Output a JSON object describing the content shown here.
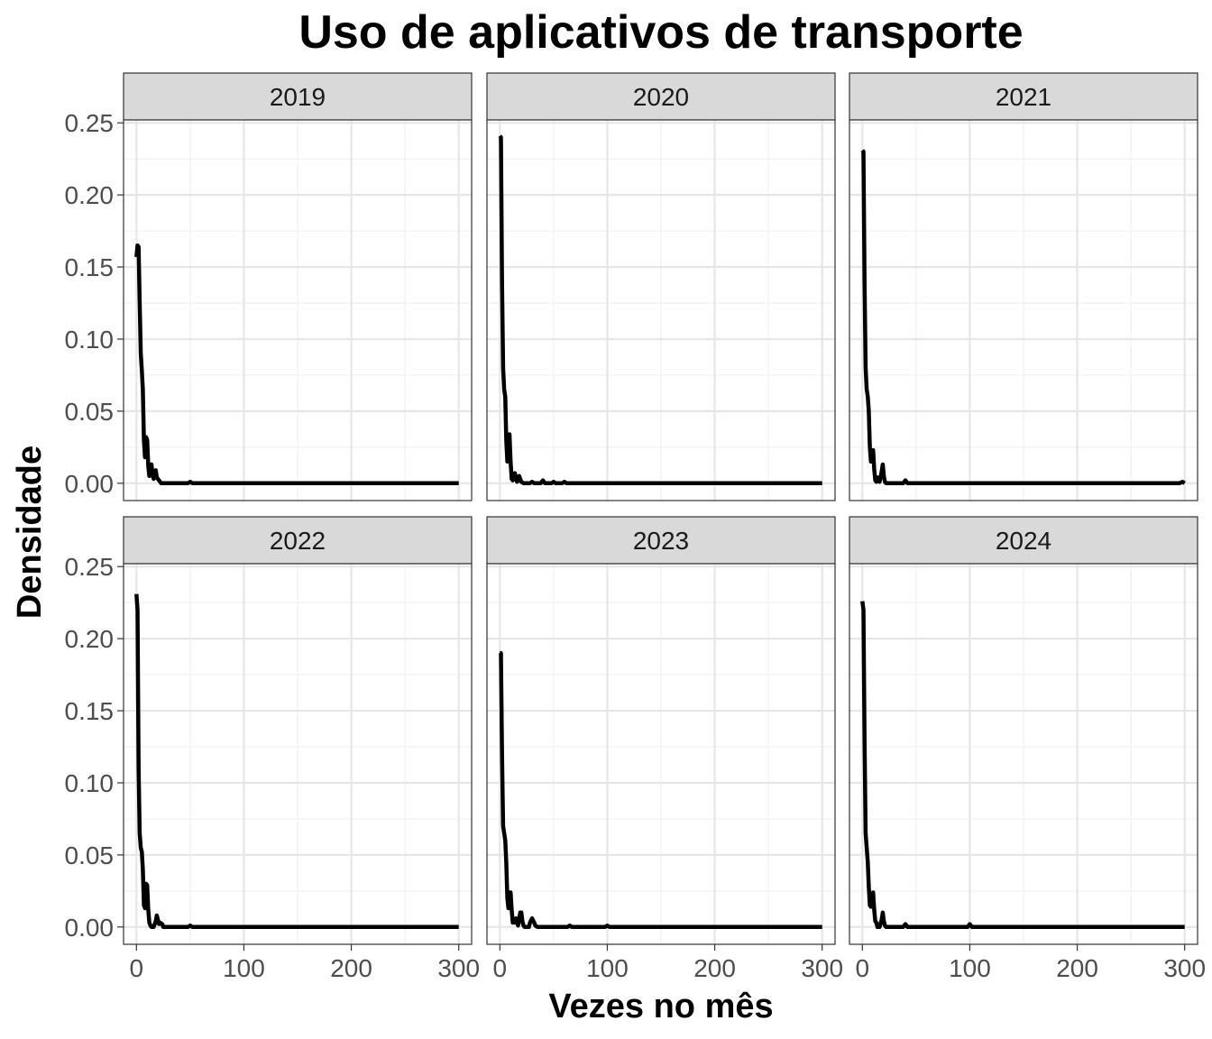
{
  "chart_data": {
    "type": "line",
    "title": "Uso de aplicativos de transporte",
    "xlabel": "Vezes no mês",
    "ylabel": "Densidade",
    "xlim": [
      -12,
      312
    ],
    "ylim": [
      -0.012,
      0.252
    ],
    "x_ticks": [
      0,
      100,
      200,
      300
    ],
    "x_tick_labels": [
      "0",
      "100",
      "200",
      "300"
    ],
    "y_ticks": [
      0,
      0.05,
      0.1,
      0.15,
      0.2,
      0.25
    ],
    "y_tick_labels": [
      "0.00",
      "0.05",
      "0.10",
      "0.15",
      "0.20",
      "0.25"
    ],
    "grid": true,
    "facet_layout": "2 rows x 3 columns",
    "line_color": "#000000",
    "panels": [
      {
        "label": "2019",
        "x": [
          0,
          1,
          2,
          3,
          4,
          5,
          6,
          7,
          8,
          9,
          10,
          11,
          12,
          13,
          14,
          15,
          16,
          17,
          18,
          19,
          20,
          21,
          22,
          23,
          25,
          30,
          40,
          48,
          50,
          52,
          60,
          100,
          200,
          300
        ],
        "y": [
          0.157,
          0.165,
          0.164,
          0.125,
          0.09,
          0.078,
          0.065,
          0.03,
          0.018,
          0.032,
          0.03,
          0.012,
          0.005,
          0.013,
          0.013,
          0.006,
          0.003,
          0.008,
          0.009,
          0.004,
          0.003,
          0.002,
          0.001,
          0.0,
          0.0,
          0.0,
          0.0,
          0.0,
          0.001,
          0.0,
          0.0,
          0.0,
          0.0,
          0.0
        ]
      },
      {
        "label": "2020",
        "x": [
          0,
          1,
          2,
          3,
          4,
          5,
          6,
          7,
          8,
          9,
          10,
          11,
          12,
          13,
          14,
          15,
          16,
          18,
          19,
          20,
          22,
          25,
          28,
          30,
          32,
          38,
          40,
          42,
          48,
          50,
          52,
          58,
          60,
          62,
          80,
          100,
          200,
          300
        ],
        "y": [
          0.241,
          0.24,
          0.14,
          0.08,
          0.065,
          0.06,
          0.03,
          0.015,
          0.033,
          0.034,
          0.015,
          0.003,
          0.002,
          0.006,
          0.007,
          0.003,
          0.001,
          0.005,
          0.003,
          0.001,
          0.0,
          0.0,
          0.0,
          0.001,
          0.0,
          0.0,
          0.002,
          0.0,
          0.0,
          0.001,
          0.0,
          0.0,
          0.001,
          0.0,
          0.0,
          0.0,
          0.0,
          0.0
        ]
      },
      {
        "label": "2021",
        "x": [
          0,
          1,
          2,
          3,
          4,
          5,
          6,
          7,
          8,
          9,
          10,
          11,
          12,
          13,
          14,
          15,
          16,
          18,
          19,
          20,
          21,
          22,
          25,
          30,
          38,
          40,
          42,
          50,
          100,
          200,
          295,
          298,
          300
        ],
        "y": [
          0.231,
          0.23,
          0.14,
          0.08,
          0.065,
          0.06,
          0.05,
          0.025,
          0.015,
          0.022,
          0.023,
          0.01,
          0.002,
          0.001,
          0.004,
          0.003,
          0.001,
          0.008,
          0.013,
          0.005,
          0.001,
          0.0,
          0.0,
          0.0,
          0.0,
          0.002,
          0.0,
          0.0,
          0.0,
          0.0,
          0.0,
          0.001,
          0.0
        ]
      },
      {
        "label": "2022",
        "x": [
          0,
          1,
          2,
          3,
          4,
          5,
          6,
          7,
          8,
          9,
          10,
          11,
          12,
          13,
          14,
          15,
          16,
          18,
          19,
          20,
          21,
          22,
          24,
          25,
          28,
          30,
          40,
          48,
          50,
          52,
          60,
          100,
          200,
          300
        ],
        "y": [
          0.231,
          0.22,
          0.11,
          0.065,
          0.055,
          0.052,
          0.04,
          0.015,
          0.013,
          0.03,
          0.029,
          0.012,
          0.003,
          0.001,
          0.0,
          0.0,
          0.0,
          0.004,
          0.008,
          0.005,
          0.002,
          0.003,
          0.002,
          0.0,
          0.0,
          0.0,
          0.0,
          0.0,
          0.001,
          0.0,
          0.0,
          0.0,
          0.0,
          0.0
        ]
      },
      {
        "label": "2023",
        "x": [
          0,
          1,
          2,
          3,
          4,
          5,
          6,
          7,
          8,
          9,
          10,
          11,
          12,
          13,
          14,
          15,
          16,
          17,
          18,
          19,
          20,
          21,
          22,
          23,
          25,
          27,
          28,
          30,
          32,
          33,
          35,
          40,
          48,
          63,
          65,
          67,
          80,
          98,
          100,
          102,
          150,
          200,
          300
        ],
        "y": [
          0.19,
          0.19,
          0.12,
          0.07,
          0.065,
          0.06,
          0.045,
          0.02,
          0.013,
          0.024,
          0.024,
          0.012,
          0.003,
          0.004,
          0.003,
          0.006,
          0.003,
          0.001,
          0.005,
          0.01,
          0.01,
          0.004,
          0.001,
          0.0,
          0.0,
          0.0,
          0.003,
          0.006,
          0.003,
          0.001,
          0.0,
          0.0,
          0.0,
          0.0,
          0.001,
          0.0,
          0.0,
          0.0,
          0.001,
          0.0,
          0.0,
          0.0,
          0.0
        ]
      },
      {
        "label": "2024",
        "x": [
          0,
          1,
          2,
          3,
          4,
          5,
          6,
          7,
          8,
          9,
          10,
          11,
          12,
          13,
          14,
          15,
          16,
          18,
          19,
          20,
          21,
          22,
          24,
          30,
          38,
          40,
          42,
          50,
          98,
          100,
          102,
          200,
          300
        ],
        "y": [
          0.226,
          0.22,
          0.13,
          0.065,
          0.055,
          0.045,
          0.028,
          0.015,
          0.014,
          0.02,
          0.024,
          0.012,
          0.004,
          0.003,
          0.0,
          0.0,
          0.0,
          0.005,
          0.01,
          0.004,
          0.001,
          0.0,
          0.0,
          0.0,
          0.0,
          0.002,
          0.0,
          0.0,
          0.0,
          0.002,
          0.0,
          0.0,
          0.0
        ]
      }
    ]
  }
}
